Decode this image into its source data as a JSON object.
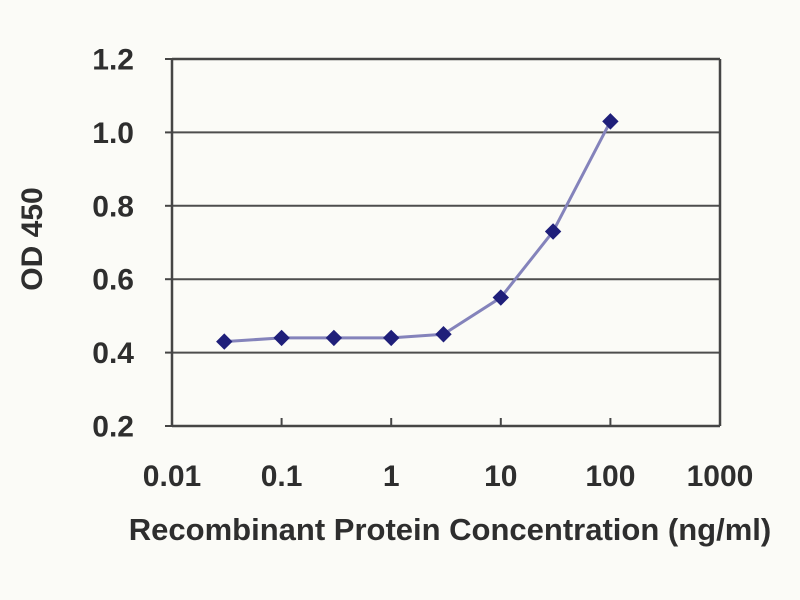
{
  "chart_data": {
    "type": "line",
    "title": "",
    "xlabel": "Recombinant Protein Concentration (ng/ml)",
    "ylabel": "OD 450",
    "x_scale": "log",
    "xlim": [
      0.01,
      1000
    ],
    "ylim": [
      0.2,
      1.2
    ],
    "x_ticks": [
      0.01,
      0.1,
      1,
      10,
      100,
      1000
    ],
    "x_tick_labels": [
      "0.01",
      "0.1",
      "1",
      "10",
      "100",
      "1000"
    ],
    "y_ticks": [
      0.2,
      0.4,
      0.6,
      0.8,
      1,
      1.2
    ],
    "y_tick_labels": [
      "0.2",
      "0.4",
      "0.6",
      "0.8",
      "1.0",
      "1.2"
    ],
    "grid": "horizontal-only",
    "legend": "none",
    "series": [
      {
        "marker": "diamond",
        "x": [
          0.03,
          0.1,
          0.3,
          1,
          3,
          10,
          30,
          100
        ],
        "y": [
          0.43,
          0.44,
          0.44,
          0.44,
          0.45,
          0.55,
          0.73,
          1.03
        ]
      }
    ],
    "colors": {
      "line": "#8483bb",
      "marker": "#1f1f7a",
      "axis": "#454545",
      "grid": "#4d4d4d",
      "text": "#2e2e2e",
      "background": "#fbfbf7"
    }
  }
}
